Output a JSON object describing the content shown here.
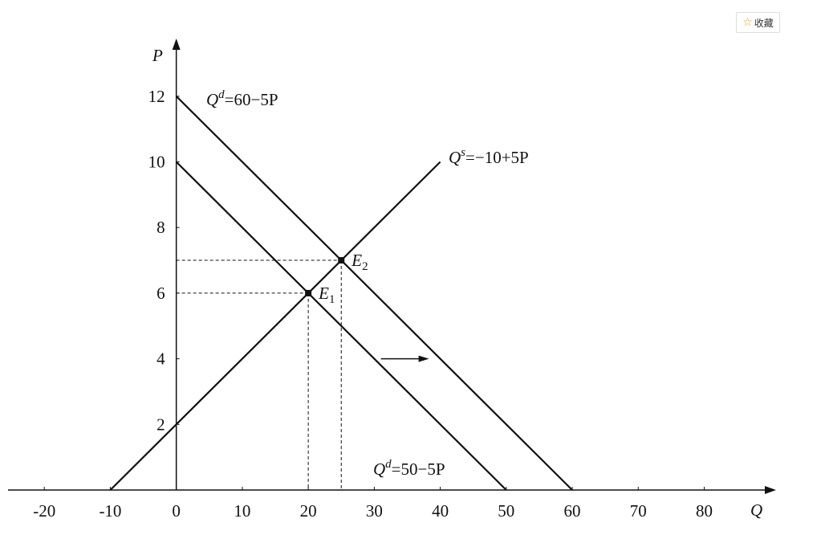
{
  "button": {
    "text": "收藏"
  },
  "chart_data": {
    "type": "line",
    "x_label": "Q",
    "y_label": "P",
    "xlim": [
      -25.5,
      90.4
    ],
    "ylim": [
      0,
      13.66
    ],
    "xticks": [
      -20,
      -10,
      0,
      10,
      20,
      30,
      40,
      50,
      60,
      70,
      80
    ],
    "yticks": [
      2,
      4,
      6,
      8,
      10,
      12
    ],
    "series": [
      {
        "label": {
          "main": "Q",
          "sup": "d",
          "rest": "=60−5P"
        },
        "color": "#111111",
        "x": [
          0,
          60
        ],
        "values": [
          12,
          0
        ]
      },
      {
        "label": {
          "main": "Q",
          "sup": "s",
          "rest": "=−10+5P"
        },
        "color": "#111111",
        "x": [
          -10,
          40
        ],
        "values": [
          0,
          10
        ]
      },
      {
        "label": {
          "main": "Q",
          "sup": "d",
          "rest": "=50−5P"
        },
        "color": "#111111",
        "x": [
          0,
          50
        ],
        "values": [
          10,
          0
        ]
      }
    ],
    "points": [
      {
        "label": {
          "main": "E",
          "sub": "1"
        },
        "x": 20,
        "y": 6
      },
      {
        "label": {
          "main": "E",
          "sub": "2"
        },
        "x": 25,
        "y": 7
      }
    ],
    "shift_arrow": {
      "x": [
        31,
        38.3
      ],
      "y": 4
    }
  }
}
